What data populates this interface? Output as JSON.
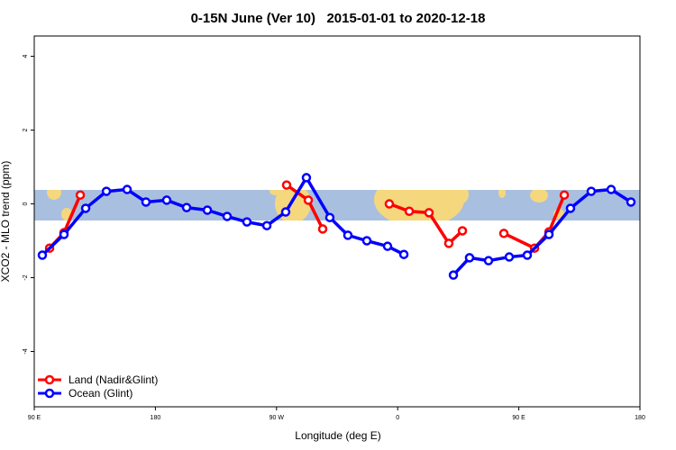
{
  "chart_data": {
    "type": "line",
    "title": "0-15N June (Ver 10)   2015-01-01 to 2020-12-18",
    "x_label": "Longitude (deg E)",
    "y_label": "XCO2 - MLO trend (ppm)",
    "xlim": [
      90,
      540
    ],
    "xticks": [
      {
        "value": 90,
        "label": "90 E"
      },
      {
        "value": 180,
        "label": "180"
      },
      {
        "value": 270,
        "label": "90 W"
      },
      {
        "value": 360,
        "label": "0"
      },
      {
        "value": 450,
        "label": "90 E"
      },
      {
        "value": 540,
        "label": "180"
      }
    ],
    "ylim": [
      -5.5,
      4.55
    ],
    "yticks": [
      -4,
      -2,
      0,
      2,
      4
    ],
    "legend": "bottom-left",
    "series": [
      {
        "name": "Land (Nadir&Glint)",
        "color": "#ff0000",
        "x": [
          101.4,
          112.1,
          124.2,
          null,
          277.5,
          293.6,
          304.3,
          null,
          353.8,
          368.6,
          383.3,
          398.0,
          408.1,
          null,
          438.9,
          461.7,
          472.4,
          483.8
        ],
        "values": [
          -1.2,
          -0.78,
          0.24,
          null,
          0.51,
          0.1,
          -0.68,
          null,
          0,
          -0.2,
          -0.24,
          -1.07,
          -0.73,
          null,
          -0.8,
          -1.2,
          -0.76,
          0.24
        ]
      },
      {
        "name": "Ocean (Glint)",
        "color": "#0000ff",
        "x": [
          96.0,
          112.1,
          128.2,
          143.6,
          159.0,
          173.0,
          188.4,
          203.2,
          218.6,
          233.3,
          248.0,
          262.8,
          276.8,
          292.2,
          309.6,
          323.0,
          337.1,
          352.5,
          364.6,
          null,
          401.4,
          413.4,
          427.5,
          442.9,
          456.3,
          472.4,
          488.4,
          503.8,
          518.6,
          533.3
        ],
        "values": [
          -1.39,
          -0.83,
          -0.12,
          0.34,
          0.39,
          0.05,
          0.1,
          -0.1,
          -0.17,
          -0.34,
          -0.49,
          -0.59,
          -0.22,
          0.71,
          -0.37,
          -0.85,
          -1.0,
          -1.15,
          -1.37,
          null,
          -1.93,
          -1.46,
          -1.54,
          -1.44,
          -1.39,
          -0.83,
          -0.12,
          0.34,
          0.39,
          0.05
        ]
      }
    ]
  }
}
